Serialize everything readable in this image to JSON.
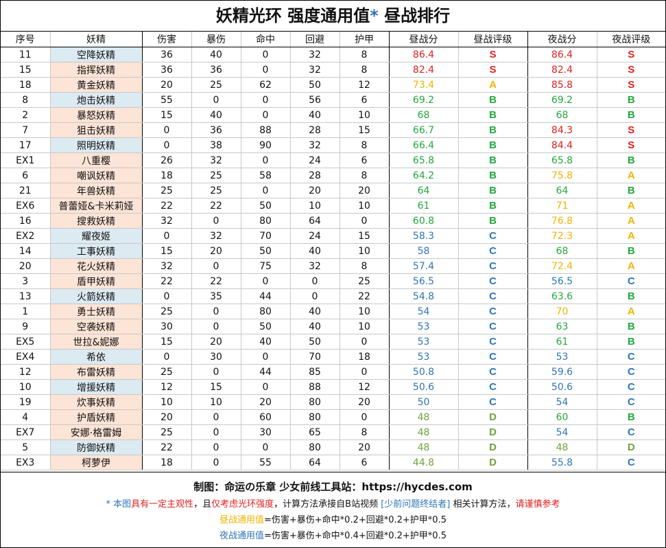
{
  "title": "妖精光环 强度通用值",
  "title_star": "*",
  "title_suffix": " 昼战排行",
  "headers": [
    "序号",
    "妖精",
    "伤害",
    "暴伤",
    "命中",
    "回避",
    "护甲",
    "昼战分",
    "昼战评级",
    "夜战分",
    "夜战评级"
  ],
  "colors": {
    "name_blue_bg": "#dceaf2",
    "name_orange_bg": "#fce4d6",
    "grade_S": "#e02020",
    "grade_A": "#f0b400",
    "grade_B": "#22a83c",
    "grade_C": "#2e75b6",
    "grade_D": "#70a23a"
  },
  "rows": [
    {
      "id": "11",
      "name": "空降妖精",
      "bg": "blue",
      "dmg": "36",
      "crit": "40",
      "hit": "0",
      "eva": "32",
      "armor": "8",
      "day": "86.4",
      "day_grade": "S",
      "night": "86.4",
      "night_grade": "S"
    },
    {
      "id": "15",
      "name": "指挥妖精",
      "bg": "orange",
      "dmg": "36",
      "crit": "36",
      "hit": "0",
      "eva": "32",
      "armor": "8",
      "day": "82.4",
      "day_grade": "S",
      "night": "82.4",
      "night_grade": "S"
    },
    {
      "id": "18",
      "name": "黄金妖精",
      "bg": "orange",
      "dmg": "20",
      "crit": "25",
      "hit": "62",
      "eva": "50",
      "armor": "12",
      "day": "73.4",
      "day_grade": "A",
      "night": "85.8",
      "night_grade": "S"
    },
    {
      "id": "8",
      "name": "炮击妖精",
      "bg": "blue",
      "dmg": "55",
      "crit": "0",
      "hit": "0",
      "eva": "56",
      "armor": "6",
      "day": "69.2",
      "day_grade": "B",
      "night": "69.2",
      "night_grade": "B"
    },
    {
      "id": "2",
      "name": "暴怒妖精",
      "bg": "orange",
      "dmg": "15",
      "crit": "40",
      "hit": "0",
      "eva": "40",
      "armor": "10",
      "day": "68",
      "day_grade": "B",
      "night": "68",
      "night_grade": "B"
    },
    {
      "id": "7",
      "name": "狙击妖精",
      "bg": "orange",
      "dmg": "0",
      "crit": "36",
      "hit": "88",
      "eva": "28",
      "armor": "15",
      "day": "66.7",
      "day_grade": "B",
      "night": "84.3",
      "night_grade": "S"
    },
    {
      "id": "17",
      "name": "照明妖精",
      "bg": "blue",
      "dmg": "0",
      "crit": "38",
      "hit": "90",
      "eva": "32",
      "armor": "8",
      "day": "66.4",
      "day_grade": "B",
      "night": "84.4",
      "night_grade": "S"
    },
    {
      "id": "EX1",
      "name": "八重樱",
      "bg": "orange",
      "dmg": "26",
      "crit": "32",
      "hit": "0",
      "eva": "24",
      "armor": "6",
      "day": "65.8",
      "day_grade": "B",
      "night": "65.8",
      "night_grade": "B"
    },
    {
      "id": "6",
      "name": "嘲讽妖精",
      "bg": "orange",
      "dmg": "18",
      "crit": "25",
      "hit": "58",
      "eva": "28",
      "armor": "8",
      "day": "64.2",
      "day_grade": "B",
      "night": "75.8",
      "night_grade": "A"
    },
    {
      "id": "21",
      "name": "年兽妖精",
      "bg": "orange",
      "dmg": "25",
      "crit": "25",
      "hit": "0",
      "eva": "20",
      "armor": "20",
      "day": "64",
      "day_grade": "B",
      "night": "64",
      "night_grade": "B"
    },
    {
      "id": "EX6",
      "name": "普蕾娅&卡米莉娅",
      "bg": "orange",
      "dmg": "22",
      "crit": "22",
      "hit": "50",
      "eva": "10",
      "armor": "10",
      "day": "61",
      "day_grade": "B",
      "night": "71",
      "night_grade": "A"
    },
    {
      "id": "16",
      "name": "搜救妖精",
      "bg": "orange",
      "dmg": "32",
      "crit": "0",
      "hit": "80",
      "eva": "64",
      "armor": "0",
      "day": "60.8",
      "day_grade": "B",
      "night": "76.8",
      "night_grade": "A"
    },
    {
      "id": "EX2",
      "name": "耀夜姬",
      "bg": "blue",
      "dmg": "0",
      "crit": "32",
      "hit": "70",
      "eva": "24",
      "armor": "15",
      "day": "58.3",
      "day_grade": "C",
      "night": "72.3",
      "night_grade": "A"
    },
    {
      "id": "14",
      "name": "工事妖精",
      "bg": "blue",
      "dmg": "15",
      "crit": "20",
      "hit": "50",
      "eva": "40",
      "armor": "10",
      "day": "58",
      "day_grade": "C",
      "night": "68",
      "night_grade": "B"
    },
    {
      "id": "20",
      "name": "花火妖精",
      "bg": "orange",
      "dmg": "32",
      "crit": "0",
      "hit": "75",
      "eva": "32",
      "armor": "8",
      "day": "57.4",
      "day_grade": "C",
      "night": "72.4",
      "night_grade": "A"
    },
    {
      "id": "3",
      "name": "盾甲妖精",
      "bg": "orange",
      "dmg": "22",
      "crit": "22",
      "hit": "0",
      "eva": "0",
      "armor": "25",
      "day": "56.5",
      "day_grade": "C",
      "night": "56.5",
      "night_grade": "C"
    },
    {
      "id": "13",
      "name": "火箭妖精",
      "bg": "blue",
      "dmg": "0",
      "crit": "35",
      "hit": "44",
      "eva": "0",
      "armor": "22",
      "day": "54.8",
      "day_grade": "C",
      "night": "63.6",
      "night_grade": "B"
    },
    {
      "id": "1",
      "name": "勇士妖精",
      "bg": "orange",
      "dmg": "25",
      "crit": "0",
      "hit": "80",
      "eva": "40",
      "armor": "10",
      "day": "54",
      "day_grade": "C",
      "night": "70",
      "night_grade": "A"
    },
    {
      "id": "9",
      "name": "空袭妖精",
      "bg": "orange",
      "dmg": "30",
      "crit": "0",
      "hit": "50",
      "eva": "40",
      "armor": "10",
      "day": "53",
      "day_grade": "C",
      "night": "63",
      "night_grade": "B"
    },
    {
      "id": "EX5",
      "name": "世拉&妮娜",
      "bg": "orange",
      "dmg": "15",
      "crit": "20",
      "hit": "40",
      "eva": "50",
      "armor": "0",
      "day": "53",
      "day_grade": "C",
      "night": "61",
      "night_grade": "B"
    },
    {
      "id": "EX4",
      "name": "希依",
      "bg": "blue",
      "dmg": "0",
      "crit": "30",
      "hit": "0",
      "eva": "70",
      "armor": "18",
      "day": "53",
      "day_grade": "C",
      "night": "53",
      "night_grade": "C"
    },
    {
      "id": "12",
      "name": "布雷妖精",
      "bg": "orange",
      "dmg": "25",
      "crit": "0",
      "hit": "44",
      "eva": "85",
      "armor": "0",
      "day": "50.8",
      "day_grade": "C",
      "night": "59.6",
      "night_grade": "C"
    },
    {
      "id": "10",
      "name": "增援妖精",
      "bg": "blue",
      "dmg": "12",
      "crit": "15",
      "hit": "0",
      "eva": "88",
      "armor": "12",
      "day": "50.6",
      "day_grade": "C",
      "night": "50.6",
      "night_grade": "C"
    },
    {
      "id": "19",
      "name": "炊事妖精",
      "bg": "orange",
      "dmg": "10",
      "crit": "10",
      "hit": "20",
      "eva": "80",
      "armor": "20",
      "day": "50",
      "day_grade": "C",
      "night": "54",
      "night_grade": "C"
    },
    {
      "id": "4",
      "name": "护盾妖精",
      "bg": "orange",
      "dmg": "20",
      "crit": "0",
      "hit": "60",
      "eva": "80",
      "armor": "0",
      "day": "48",
      "day_grade": "D",
      "night": "60",
      "night_grade": "B"
    },
    {
      "id": "EX7",
      "name": "安娜·格雷姆",
      "bg": "orange",
      "dmg": "25",
      "crit": "0",
      "hit": "30",
      "eva": "65",
      "armor": "8",
      "day": "48",
      "day_grade": "D",
      "night": "54",
      "night_grade": "C"
    },
    {
      "id": "5",
      "name": "防御妖精",
      "bg": "blue",
      "dmg": "22",
      "crit": "0",
      "hit": "0",
      "eva": "80",
      "armor": "20",
      "day": "48",
      "day_grade": "D",
      "night": "48",
      "night_grade": "D"
    },
    {
      "id": "EX3",
      "name": "柯萝伊",
      "bg": "orange",
      "dmg": "18",
      "crit": "0",
      "hit": "55",
      "eva": "64",
      "armor": "6",
      "day": "44.8",
      "day_grade": "D",
      "night": "55.8",
      "night_grade": "C"
    }
  ],
  "footer": {
    "line1": "制图：命运の乐章   少女前线工具站：https://hycdes.com",
    "line2": {
      "p1": "* 本图",
      "p2": "具有一定主观性",
      "p3": "，且",
      "p4": "仅考虑光环强度",
      "p5": "，计算方法承接自B站视频 ",
      "p6": "[少前问题终结者]",
      "p7": " 相关计算方法，",
      "p8": "请谨慎参考"
    },
    "line3": {
      "label": "昼战通用值",
      "formula": "=伤害+暴伤+命中*0.2+回避*0.2+护甲*0.5"
    },
    "line4": {
      "label": "夜战通用值",
      "formula": "=伤害+暴伤+命中*0.4+回避*0.2+护甲*0.5"
    }
  }
}
